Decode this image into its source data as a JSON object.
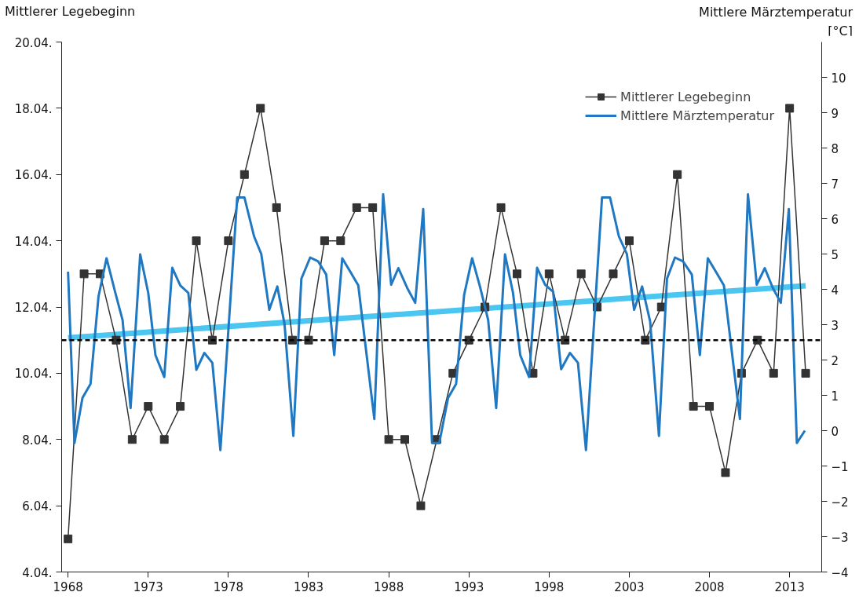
{
  "chart_data": {
    "type": "line",
    "ylabel": "Mittlerer Legebeginn",
    "y2label": "Mittlere Märztemperatur\n[°C]",
    "xlim": [
      1967.6,
      2015
    ],
    "xticks": [
      1968,
      1973,
      1978,
      1983,
      1988,
      1993,
      1998,
      2003,
      2008,
      2013
    ],
    "ylim": [
      4.04,
      20.04
    ],
    "yticks": [
      {
        "value": 4.04,
        "label": "4.04."
      },
      {
        "value": 6.04,
        "label": "6.04."
      },
      {
        "value": 8.04,
        "label": "8.04."
      },
      {
        "value": 10.04,
        "label": "10.04."
      },
      {
        "value": 12.04,
        "label": "12.04."
      },
      {
        "value": 14.04,
        "label": "14.04."
      },
      {
        "value": 16.04,
        "label": "16.04."
      },
      {
        "value": 18.04,
        "label": "18.04."
      },
      {
        "value": 20.04,
        "label": "20.04."
      }
    ],
    "y2lim": [
      -4,
      11
    ],
    "y2ticks": [
      -4,
      -3,
      -2,
      -1,
      0,
      1,
      2,
      3,
      4,
      5,
      6,
      7,
      8,
      9,
      10
    ],
    "grid": false,
    "legend": "top right",
    "series": [
      {
        "name": "Mittlerer Legebeginn",
        "color": "#333333",
        "marker": "square",
        "x": [
          1968,
          1969,
          1970,
          1971,
          1972,
          1973,
          1974,
          1975,
          1976,
          1977,
          1978,
          1979,
          1980,
          1981,
          1982,
          1983,
          1984,
          1985,
          1986,
          1987,
          1988,
          1989,
          1990,
          1991,
          1992,
          1993,
          1994,
          1995,
          1996,
          1997,
          1998,
          1999,
          2000,
          2001,
          2002,
          2003,
          2004,
          2005,
          2006,
          2007,
          2008,
          2009,
          2010,
          2011,
          2012,
          2013,
          2014
        ],
        "values": [
          5.04,
          13.04,
          13.04,
          11.04,
          8.04,
          9.04,
          8.04,
          9.04,
          14.04,
          11.04,
          14.04,
          16.04,
          18.04,
          15.04,
          11.04,
          11.04,
          14.04,
          14.04,
          15.04,
          15.04,
          8.04,
          8.04,
          6.04,
          8.04,
          10.04,
          11.04,
          12.04,
          15.04,
          13.04,
          10.04,
          13.04,
          11.04,
          13.04,
          12.04,
          13.04,
          14.04,
          11.04,
          12.04,
          16.04,
          9.04,
          9.04,
          7.04,
          10.04,
          11.04,
          10.04,
          18.04,
          10.04
        ]
      },
      {
        "name": "Mittlere Märztemperatur",
        "color": "#1f78c1",
        "marker": "none",
        "axis": "y2",
        "x": [
          1968,
          1968.4,
          1968.9,
          1969.4,
          1969.9,
          1970.4,
          1970.95,
          1971.4,
          1971.9,
          1972.5,
          1973.0,
          1973.45,
          1974.0,
          1974.5,
          1975.0,
          1975.5,
          1976.0,
          1976.5,
          1977.0,
          1977.5,
          1978.55,
          1979.0,
          1979.6,
          1980.05,
          1980.55,
          1981.05,
          1981.5,
          1982.05,
          1982.55,
          1983.1,
          1983.6,
          1984.1,
          1984.6,
          1985.1,
          1985.6,
          1986.1,
          1987.1,
          1987.65,
          1988.15,
          1988.6,
          1989.15,
          1989.65,
          1990.15,
          1990.7,
          1991.15,
          1991.7,
          1992.2,
          1992.7,
          1993.2,
          1993.7,
          1994.2,
          1994.7,
          1995.25,
          1995.75,
          1996.2,
          1996.75,
          1997.25,
          1997.75,
          1998.25,
          1998.75,
          1999.3,
          1999.8,
          2000.3,
          2001.3,
          2001.8,
          2002.35,
          2002.85,
          2003.3,
          2003.8,
          2004.3,
          2004.85,
          2005.35,
          2005.85,
          2006.35,
          2006.9,
          2007.4,
          2007.9,
          2008.4,
          2008.9,
          2009.9,
          2010.4,
          2010.95,
          2011.45,
          2011.95,
          2012.45,
          2012.95,
          2013.45,
          2013.95
        ],
        "values": [
          4.5,
          -0.35,
          0.93,
          1.32,
          3.8,
          4.88,
          3.9,
          3.13,
          0.64,
          4.99,
          3.9,
          2.14,
          1.52,
          4.61,
          4.11,
          3.9,
          1.72,
          2.2,
          1.92,
          -0.55,
          6.6,
          6.6,
          5.5,
          5.0,
          3.42,
          4.08,
          3.02,
          -0.15,
          4.3,
          4.9,
          4.79,
          4.42,
          2.14,
          4.88,
          4.5,
          4.11,
          0.33,
          6.69,
          4.13,
          4.6,
          4.04,
          3.62,
          6.27,
          -0.35,
          -0.35,
          0.93,
          1.32,
          3.84,
          4.88,
          4.06,
          3.13,
          0.64,
          4.99,
          3.9,
          2.14,
          1.52,
          4.61,
          4.13,
          3.93,
          1.74,
          2.2,
          1.92,
          -0.55,
          6.6,
          6.6,
          5.5,
          5.0,
          3.42,
          4.08,
          3.09,
          -0.15,
          4.3,
          4.9,
          4.79,
          4.42,
          2.14,
          4.88,
          4.5,
          4.11,
          0.33,
          6.69,
          4.13,
          4.6,
          4.04,
          3.62,
          6.27,
          -0.35,
          0.0
        ]
      },
      {
        "type": "line",
        "color": "#4ac6f0",
        "marker": "none",
        "axis": "y2",
        "x": [
          1968,
          2014
        ],
        "values": [
          2.63,
          4.1
        ]
      }
    ],
    "ref_lines": [
      {
        "axis": "y",
        "value": 11.04,
        "color": "#000000",
        "line_style": "dashed"
      }
    ]
  }
}
